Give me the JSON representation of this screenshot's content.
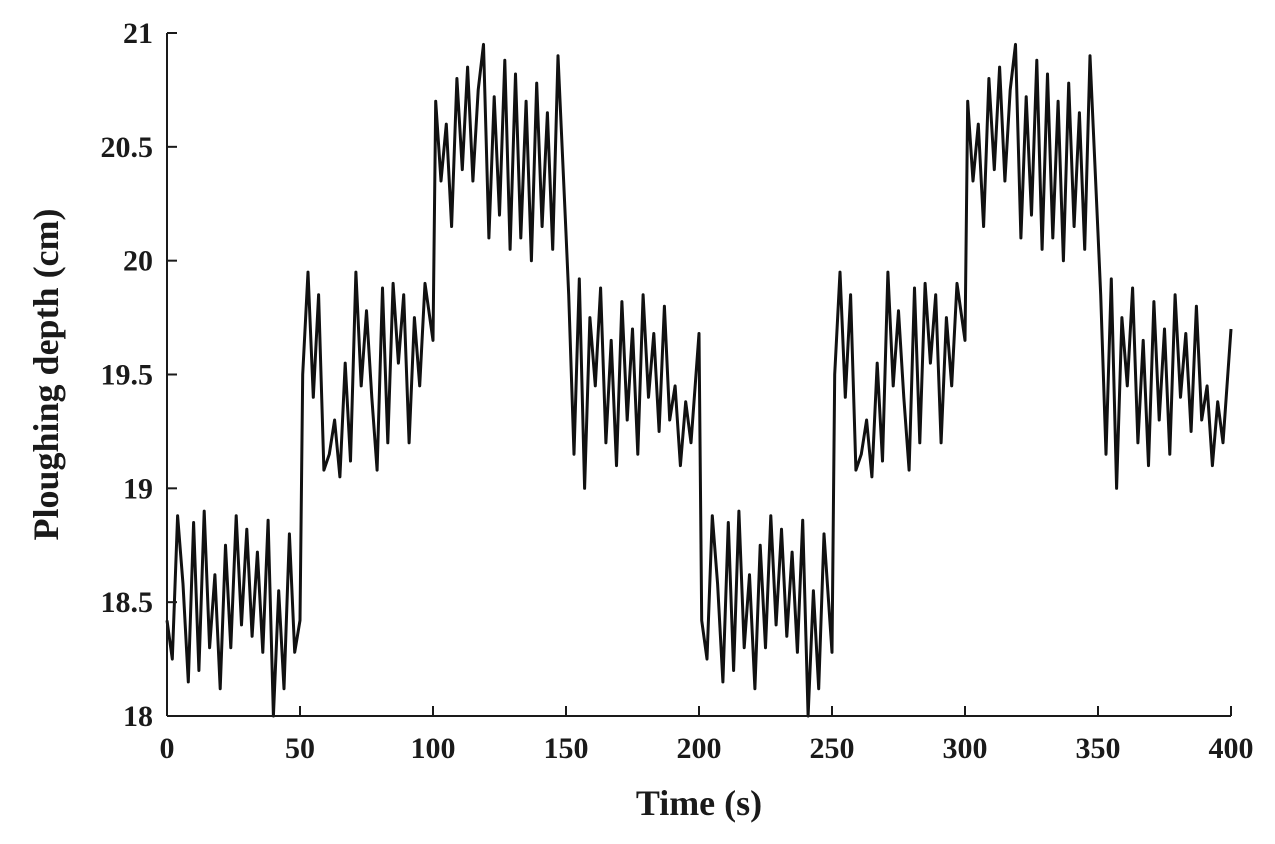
{
  "chart_data": {
    "type": "line",
    "title": "",
    "xlabel": "Time (s)",
    "ylabel": "Ploughing depth (cm)",
    "xlim": [
      0,
      400
    ],
    "ylim": [
      18,
      21
    ],
    "xticks": [
      "0",
      "50",
      "100",
      "150",
      "200",
      "250",
      "300",
      "350",
      "400"
    ],
    "yticks": [
      "18",
      "18.5",
      "19",
      "19.5",
      "20",
      "20.5",
      "21"
    ],
    "grid": false,
    "line_color": "#111111",
    "series": [
      {
        "x": [
          0,
          2,
          4,
          6,
          8,
          10,
          12,
          14,
          16,
          18,
          20,
          22,
          24,
          26,
          28,
          30,
          32,
          34,
          36,
          38,
          40,
          42,
          44,
          46,
          48,
          50,
          51,
          53,
          55,
          57,
          59,
          61,
          63,
          65,
          67,
          69,
          71,
          73,
          75,
          77,
          79,
          81,
          83,
          85,
          87,
          89,
          91,
          93,
          95,
          97,
          100,
          101,
          103,
          105,
          107,
          109,
          111,
          113,
          115,
          117,
          119,
          121,
          123,
          125,
          127,
          129,
          131,
          133,
          135,
          137,
          139,
          141,
          143,
          145,
          147,
          150,
          151,
          153,
          155,
          157,
          159,
          161,
          163,
          165,
          167,
          169,
          171,
          173,
          175,
          177,
          179,
          181,
          183,
          185,
          187,
          189,
          191,
          193,
          195,
          197,
          200,
          201,
          203,
          205,
          207,
          209,
          211,
          213,
          215,
          217,
          219,
          221,
          223,
          225,
          227,
          229,
          231,
          233,
          235,
          237,
          239,
          241,
          243,
          245,
          247,
          250,
          251,
          253,
          255,
          257,
          259,
          261,
          263,
          265,
          267,
          269,
          271,
          273,
          275,
          277,
          279,
          281,
          283,
          285,
          287,
          289,
          291,
          293,
          295,
          297,
          300,
          301,
          303,
          305,
          307,
          309,
          311,
          313,
          315,
          317,
          319,
          321,
          323,
          325,
          327,
          329,
          331,
          333,
          335,
          337,
          339,
          341,
          343,
          345,
          347,
          350,
          351,
          353,
          355,
          357,
          359,
          361,
          363,
          365,
          367,
          369,
          371,
          373,
          375,
          377,
          379,
          381,
          383,
          385,
          387,
          389,
          391,
          393,
          395,
          397,
          400
        ],
        "y": [
          18.42,
          18.25,
          18.88,
          18.58,
          18.15,
          18.85,
          18.2,
          18.9,
          18.3,
          18.62,
          18.12,
          18.75,
          18.3,
          18.88,
          18.4,
          18.82,
          18.35,
          18.72,
          18.28,
          18.86,
          18.0,
          18.55,
          18.12,
          18.8,
          18.28,
          18.42,
          19.5,
          19.95,
          19.4,
          19.85,
          19.08,
          19.15,
          19.3,
          19.05,
          19.55,
          19.12,
          19.95,
          19.45,
          19.78,
          19.4,
          19.08,
          19.88,
          19.2,
          19.9,
          19.55,
          19.85,
          19.2,
          19.75,
          19.45,
          19.9,
          19.65,
          20.7,
          20.35,
          20.6,
          20.15,
          20.8,
          20.4,
          20.85,
          20.35,
          20.75,
          20.95,
          20.1,
          20.72,
          20.2,
          20.88,
          20.05,
          20.82,
          20.1,
          20.7,
          20.0,
          20.78,
          20.15,
          20.65,
          20.05,
          20.9,
          20.12,
          19.85,
          19.15,
          19.92,
          19.0,
          19.75,
          19.45,
          19.88,
          19.2,
          19.65,
          19.1,
          19.82,
          19.3,
          19.7,
          19.15,
          19.85,
          19.4,
          19.68,
          19.25,
          19.8,
          19.3,
          19.45,
          19.1,
          19.38,
          19.2,
          19.68,
          18.42,
          18.25,
          18.88,
          18.58,
          18.15,
          18.85,
          18.2,
          18.9,
          18.3,
          18.62,
          18.12,
          18.75,
          18.3,
          18.88,
          18.4,
          18.82,
          18.35,
          18.72,
          18.28,
          18.86,
          18.0,
          18.55,
          18.12,
          18.8,
          18.28,
          19.5,
          19.95,
          19.4,
          19.85,
          19.08,
          19.15,
          19.3,
          19.05,
          19.55,
          19.12,
          19.95,
          19.45,
          19.78,
          19.4,
          19.08,
          19.88,
          19.2,
          19.9,
          19.55,
          19.85,
          19.2,
          19.75,
          19.45,
          19.9,
          19.65,
          20.7,
          20.35,
          20.6,
          20.15,
          20.8,
          20.4,
          20.85,
          20.35,
          20.75,
          20.95,
          20.1,
          20.72,
          20.2,
          20.88,
          20.05,
          20.82,
          20.1,
          20.7,
          20.0,
          20.78,
          20.15,
          20.65,
          20.05,
          20.9,
          20.12,
          19.85,
          19.15,
          19.92,
          19.0,
          19.75,
          19.45,
          19.88,
          19.2,
          19.65,
          19.1,
          19.82,
          19.3,
          19.7,
          19.15,
          19.85,
          19.4,
          19.68,
          19.25,
          19.8,
          19.3,
          19.45,
          19.1,
          19.38,
          19.2,
          19.7
        ]
      }
    ]
  }
}
